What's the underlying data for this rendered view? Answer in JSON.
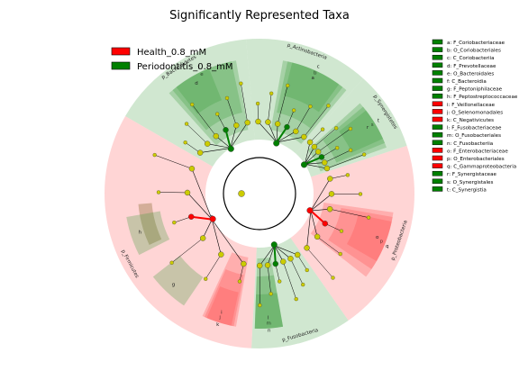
{
  "chart_data": {
    "type": "cladogram",
    "title": "Significantly Represented Taxa",
    "groups": [
      {
        "name": "Health_0.8_mM",
        "color": "#ff0000"
      },
      {
        "name": "Periodontitis_0.8_mM",
        "color": "#008000"
      }
    ],
    "colors": {
      "health_shade": "#ff9999",
      "perio_shade": "#66b266",
      "bacteroidetes_bg": "#a9d4a9",
      "firmicutes_band": "#c9a48a",
      "node_nonsig": "#cccc00",
      "line": "#000000"
    },
    "phyla": [
      {
        "id": "bacteroidetes",
        "label": "p_Bacteroidetes",
        "group": "Periodontitis_0.8_mM",
        "start": -60,
        "end": -5
      },
      {
        "id": "actinobacteria",
        "label": "p_Actinobacteria",
        "group": "Periodontitis_0.8_mM",
        "start": -5,
        "end": 42
      },
      {
        "id": "synergistetes",
        "label": "p_Synergistetes",
        "group": "Periodontitis_0.8_mM",
        "start": 42,
        "end": 72
      },
      {
        "id": "proteobacteria",
        "label": "p_Proteobacteria",
        "group": "Health_0.8_mM",
        "start": 72,
        "end": 145
      },
      {
        "id": "fusobacteria",
        "label": "p_Fusobacteria",
        "group": "Periodontitis_0.8_mM",
        "start": 145,
        "end": 183
      },
      {
        "id": "firmicutes",
        "label": "p_Firmicutes",
        "group": "Health_0.8_mM",
        "start": 183,
        "end": 300
      }
    ],
    "legend_entries": [
      {
        "key": "a",
        "label": "a: F_Coriobacteriaceae",
        "group": "Periodontitis_0.8_mM"
      },
      {
        "key": "b",
        "label": "b: O_Coriobacteriales",
        "group": "Periodontitis_0.8_mM"
      },
      {
        "key": "c",
        "label": "c: C_Coriobacteriia",
        "group": "Periodontitis_0.8_mM"
      },
      {
        "key": "d",
        "label": "d: F_Prevotellaceae",
        "group": "Periodontitis_0.8_mM"
      },
      {
        "key": "e",
        "label": "e: O_Bacteroidales",
        "group": "Periodontitis_0.8_mM"
      },
      {
        "key": "f",
        "label": "f: C_Bacteroidia",
        "group": "Periodontitis_0.8_mM"
      },
      {
        "key": "g",
        "label": "g: F_Peptoniphilaceae",
        "group": "Periodontitis_0.8_mM"
      },
      {
        "key": "h",
        "label": "h: F_Peptostreptococcaceae",
        "group": "Periodontitis_0.8_mM"
      },
      {
        "key": "i",
        "label": "i: F_Veillonellaceae",
        "group": "Health_0.8_mM"
      },
      {
        "key": "j",
        "label": "j: O_Selenomonadales",
        "group": "Health_0.8_mM"
      },
      {
        "key": "k",
        "label": "k: C_Negativicutes",
        "group": "Health_0.8_mM"
      },
      {
        "key": "l",
        "label": "l: F_Fusobacteriaceae",
        "group": "Periodontitis_0.8_mM"
      },
      {
        "key": "m",
        "label": "m: O_Fusobacteriales",
        "group": "Periodontitis_0.8_mM"
      },
      {
        "key": "n",
        "label": "n: C_Fusobacteriia",
        "group": "Periodontitis_0.8_mM"
      },
      {
        "key": "o",
        "label": "o: F_Enterobacteriaceae",
        "group": "Health_0.8_mM"
      },
      {
        "key": "p",
        "label": "p: O_Enterobacteriales",
        "group": "Health_0.8_mM"
      },
      {
        "key": "q",
        "label": "q: C_Gammaproteobacteria",
        "group": "Health_0.8_mM"
      },
      {
        "key": "r",
        "label": "r: F_Synergistaceae",
        "group": "Periodontitis_0.8_mM"
      },
      {
        "key": "s",
        "label": "s: O_Synergistales",
        "group": "Periodontitis_0.8_mM"
      },
      {
        "key": "t",
        "label": "t: C_Synergistia",
        "group": "Periodontitis_0.8_mM"
      }
    ],
    "clade_highlights": [
      {
        "key": "f",
        "group": "Periodontitis_0.8_mM",
        "rank": "class",
        "start": -42,
        "end": -10
      },
      {
        "key": "e",
        "group": "Periodontitis_0.8_mM",
        "rank": "order",
        "start": -40,
        "end": -12
      },
      {
        "key": "d",
        "group": "Periodontitis_0.8_mM",
        "rank": "family",
        "start": -38,
        "end": -22
      },
      {
        "key": "c",
        "group": "Periodontitis_0.8_mM",
        "rank": "class",
        "start": 10,
        "end": 40
      },
      {
        "key": "b",
        "group": "Periodontitis_0.8_mM",
        "rank": "order",
        "start": 12,
        "end": 38
      },
      {
        "key": "a",
        "group": "Periodontitis_0.8_mM",
        "rank": "family",
        "start": 14,
        "end": 36
      },
      {
        "key": "t",
        "group": "Periodontitis_0.8_mM",
        "rank": "class",
        "start": 48,
        "end": 70
      },
      {
        "key": "s",
        "group": "Periodontitis_0.8_mM",
        "rank": "order",
        "start": 50,
        "end": 68
      },
      {
        "key": "r",
        "group": "Periodontitis_0.8_mM",
        "rank": "family",
        "start": 52,
        "end": 66
      },
      {
        "key": "q",
        "group": "Health_0.8_mM",
        "rank": "class",
        "start": 98,
        "end": 128
      },
      {
        "key": "p",
        "group": "Health_0.8_mM",
        "rank": "order",
        "start": 100,
        "end": 124
      },
      {
        "key": "o",
        "group": "Health_0.8_mM",
        "rank": "family",
        "start": 102,
        "end": 120
      },
      {
        "key": "n",
        "group": "Periodontitis_0.8_mM",
        "rank": "class",
        "start": 170,
        "end": 182
      },
      {
        "key": "m",
        "group": "Periodontitis_0.8_mM",
        "rank": "order",
        "start": 170,
        "end": 182
      },
      {
        "key": "l",
        "group": "Periodontitis_0.8_mM",
        "rank": "family",
        "start": 170,
        "end": 182
      },
      {
        "key": "k",
        "group": "Health_0.8_mM",
        "rank": "class",
        "start": 190,
        "end": 205
      },
      {
        "key": "j",
        "group": "Health_0.8_mM",
        "rank": "order",
        "start": 191,
        "end": 204
      },
      {
        "key": "i",
        "group": "Health_0.8_mM",
        "rank": "family",
        "start": 192,
        "end": 203
      },
      {
        "key": "h",
        "group": "Periodontitis_0.8_mM",
        "rank": "family",
        "start": 243,
        "end": 260
      },
      {
        "key": "g",
        "group": "Periodontitis_0.8_mM",
        "rank": "family",
        "start": 214,
        "end": 232
      }
    ],
    "small_labels_on_chart": [
      "a",
      "b",
      "c",
      "d",
      "e",
      "f",
      "g",
      "h",
      "i",
      "j",
      "k",
      "l",
      "m",
      "n",
      "o",
      "p",
      "q",
      "r",
      "s",
      "t"
    ]
  }
}
